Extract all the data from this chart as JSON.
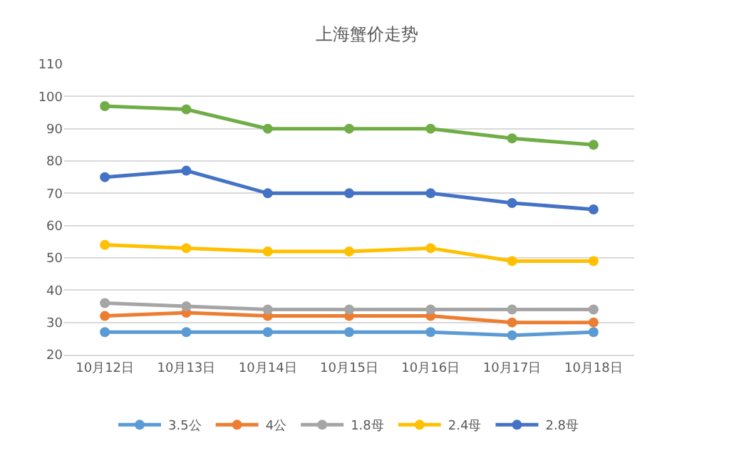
{
  "chart_data": {
    "type": "line",
    "title": "上海蟹价走势",
    "categories": [
      "10月12日",
      "10月13日",
      "10月14日",
      "10月15日",
      "10月16日",
      "10月17日",
      "10月18日"
    ],
    "series": [
      {
        "name": "3.5公",
        "color": "#5b9bd5",
        "values": [
          27,
          27,
          27,
          27,
          27,
          26,
          27
        ]
      },
      {
        "name": "4公",
        "color": "#ed7d31",
        "values": [
          32,
          33,
          32,
          32,
          32,
          30,
          30
        ]
      },
      {
        "name": "1.8母",
        "color": "#a5a5a5",
        "values": [
          36,
          35,
          34,
          34,
          34,
          34,
          34
        ]
      },
      {
        "name": "2.4母",
        "color": "#ffc000",
        "values": [
          54,
          53,
          52,
          52,
          53,
          49,
          49
        ]
      },
      {
        "name": "2.8母",
        "color": "#4472c4",
        "values": [
          75,
          77,
          70,
          70,
          70,
          67,
          65
        ]
      },
      {
        "color": "#70ad47",
        "values": [
          97,
          96,
          90,
          90,
          90,
          87,
          85
        ]
      }
    ],
    "ylim": [
      20,
      110
    ],
    "yticks": [
      20,
      30,
      40,
      50,
      60,
      70,
      80,
      90,
      100,
      110
    ],
    "grid": "y",
    "legend": "bottom",
    "marker": "circle",
    "line_style": "solid"
  }
}
